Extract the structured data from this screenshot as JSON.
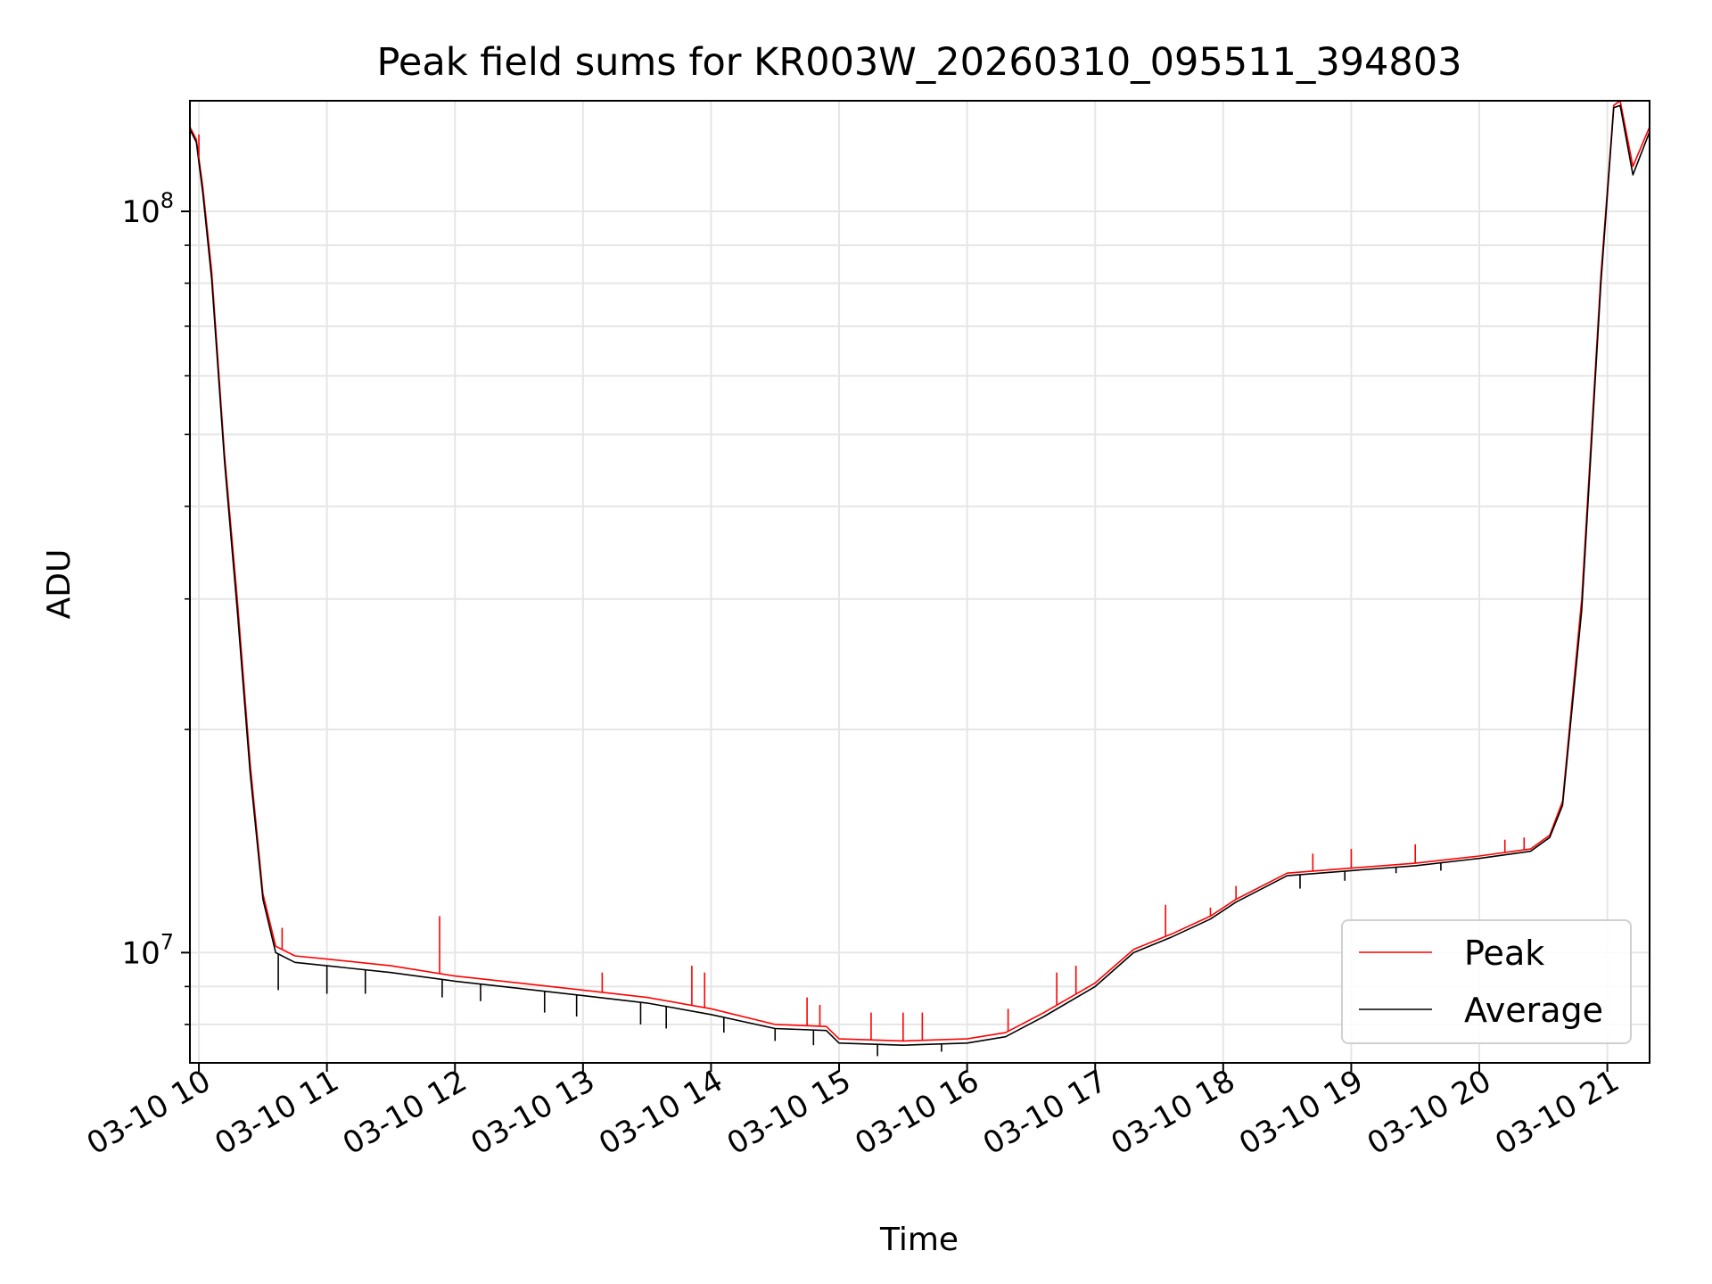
{
  "chart_data": {
    "type": "line",
    "title": "Peak field sums for KR003W_20260310_095511_394803",
    "xlabel": "Time",
    "ylabel": "ADU",
    "yscale": "log",
    "grid": true,
    "legend_position": "bottom-right",
    "x_unit": "hours (day 03-10)",
    "xlim": [
      9.93,
      21.33
    ],
    "ylim": [
      7100000.0,
      141000000.0
    ],
    "x_tick_values": [
      10,
      11,
      12,
      13,
      14,
      15,
      16,
      17,
      18,
      19,
      20,
      21
    ],
    "x_tick_labels": [
      "03-10 10",
      "03-10 11",
      "03-10 12",
      "03-10 13",
      "03-10 14",
      "03-10 15",
      "03-10 16",
      "03-10 17",
      "03-10 18",
      "03-10 19",
      "03-10 20",
      "03-10 21"
    ],
    "y_major_ticks": [
      {
        "value": 10000000,
        "base": "10",
        "exp": "7"
      },
      {
        "value": 100000000,
        "base": "10",
        "exp": "8"
      }
    ],
    "y_minor_ticks": [
      8000000,
      9000000,
      20000000,
      30000000,
      40000000,
      50000000,
      60000000,
      70000000,
      80000000,
      90000000
    ],
    "series": [
      {
        "name": "Peak",
        "color": "#ff0000",
        "x": [
          9.93,
          9.98,
          10.03,
          10.1,
          10.2,
          10.3,
          10.4,
          10.5,
          10.6,
          10.75,
          11.0,
          11.5,
          12.0,
          12.5,
          13.0,
          13.5,
          14.0,
          14.5,
          14.9,
          15.0,
          15.5,
          16.0,
          16.3,
          16.6,
          17.0,
          17.3,
          17.6,
          17.9,
          18.1,
          18.5,
          19.0,
          19.5,
          20.0,
          20.4,
          20.55,
          20.65,
          20.8,
          20.95,
          21.05,
          21.1,
          21.2,
          21.33
        ],
        "y": [
          130000000,
          125000000,
          108000000,
          83000000,
          47000000,
          30000000,
          18000000,
          12000000,
          10200000,
          9900000,
          9800000,
          9600000,
          9300000,
          9100000,
          8900000,
          8700000,
          8400000,
          8000000,
          7950000,
          7650000,
          7600000,
          7650000,
          7800000,
          8300000,
          9100000,
          10100000,
          10600000,
          11200000,
          11800000,
          12800000,
          13000000,
          13200000,
          13500000,
          13800000,
          14400000,
          16000000,
          30000000,
          82000000,
          139000000,
          141000000,
          115000000,
          130000000
        ],
        "spikes": [
          {
            "x": 10.0,
            "y": 127000000
          },
          {
            "x": 10.65,
            "y": 10800000
          },
          {
            "x": 11.88,
            "y": 11200000
          },
          {
            "x": 13.15,
            "y": 9400000
          },
          {
            "x": 13.85,
            "y": 9600000
          },
          {
            "x": 13.95,
            "y": 9400000
          },
          {
            "x": 14.75,
            "y": 8700000
          },
          {
            "x": 14.85,
            "y": 8500000
          },
          {
            "x": 15.25,
            "y": 8300000
          },
          {
            "x": 15.5,
            "y": 8300000
          },
          {
            "x": 15.65,
            "y": 8300000
          },
          {
            "x": 16.32,
            "y": 8400000
          },
          {
            "x": 16.7,
            "y": 9400000
          },
          {
            "x": 16.85,
            "y": 9600000
          },
          {
            "x": 17.55,
            "y": 11600000
          },
          {
            "x": 17.9,
            "y": 11500000
          },
          {
            "x": 18.1,
            "y": 12300000
          },
          {
            "x": 18.7,
            "y": 13600000
          },
          {
            "x": 19.0,
            "y": 13800000
          },
          {
            "x": 19.5,
            "y": 14000000
          },
          {
            "x": 20.2,
            "y": 14200000
          },
          {
            "x": 20.35,
            "y": 14300000
          }
        ]
      },
      {
        "name": "Average",
        "color": "#000000",
        "x": [
          9.93,
          9.98,
          10.03,
          10.1,
          10.2,
          10.3,
          10.4,
          10.5,
          10.6,
          10.75,
          11.0,
          11.5,
          12.0,
          12.5,
          13.0,
          13.5,
          14.0,
          14.5,
          14.9,
          15.0,
          15.5,
          16.0,
          16.3,
          16.6,
          17.0,
          17.3,
          17.6,
          17.9,
          18.1,
          18.5,
          19.0,
          19.5,
          20.0,
          20.4,
          20.55,
          20.65,
          20.8,
          20.95,
          21.05,
          21.1,
          21.2,
          21.33
        ],
        "y": [
          129000000,
          124000000,
          106000000,
          81000000,
          46000000,
          29000000,
          17500000,
          11800000,
          10000000,
          9700000,
          9600000,
          9400000,
          9150000,
          8950000,
          8750000,
          8550000,
          8250000,
          7900000,
          7850000,
          7550000,
          7500000,
          7550000,
          7700000,
          8200000,
          9000000,
          10000000,
          10500000,
          11100000,
          11700000,
          12700000,
          12900000,
          13100000,
          13400000,
          13700000,
          14300000,
          15800000,
          29000000,
          80000000,
          138000000,
          139000000,
          112000000,
          128000000
        ],
        "dips": [
          {
            "x": 10.62,
            "y": 8900000
          },
          {
            "x": 11.0,
            "y": 8800000
          },
          {
            "x": 11.3,
            "y": 8800000
          },
          {
            "x": 11.9,
            "y": 8700000
          },
          {
            "x": 12.2,
            "y": 8600000
          },
          {
            "x": 12.7,
            "y": 8300000
          },
          {
            "x": 12.95,
            "y": 8200000
          },
          {
            "x": 13.45,
            "y": 8000000
          },
          {
            "x": 13.65,
            "y": 7900000
          },
          {
            "x": 14.1,
            "y": 7800000
          },
          {
            "x": 14.5,
            "y": 7600000
          },
          {
            "x": 14.8,
            "y": 7500000
          },
          {
            "x": 15.3,
            "y": 7250000
          },
          {
            "x": 15.8,
            "y": 7350000
          },
          {
            "x": 18.6,
            "y": 12200000
          },
          {
            "x": 18.95,
            "y": 12500000
          },
          {
            "x": 19.35,
            "y": 12800000
          },
          {
            "x": 19.7,
            "y": 12900000
          }
        ]
      }
    ]
  }
}
